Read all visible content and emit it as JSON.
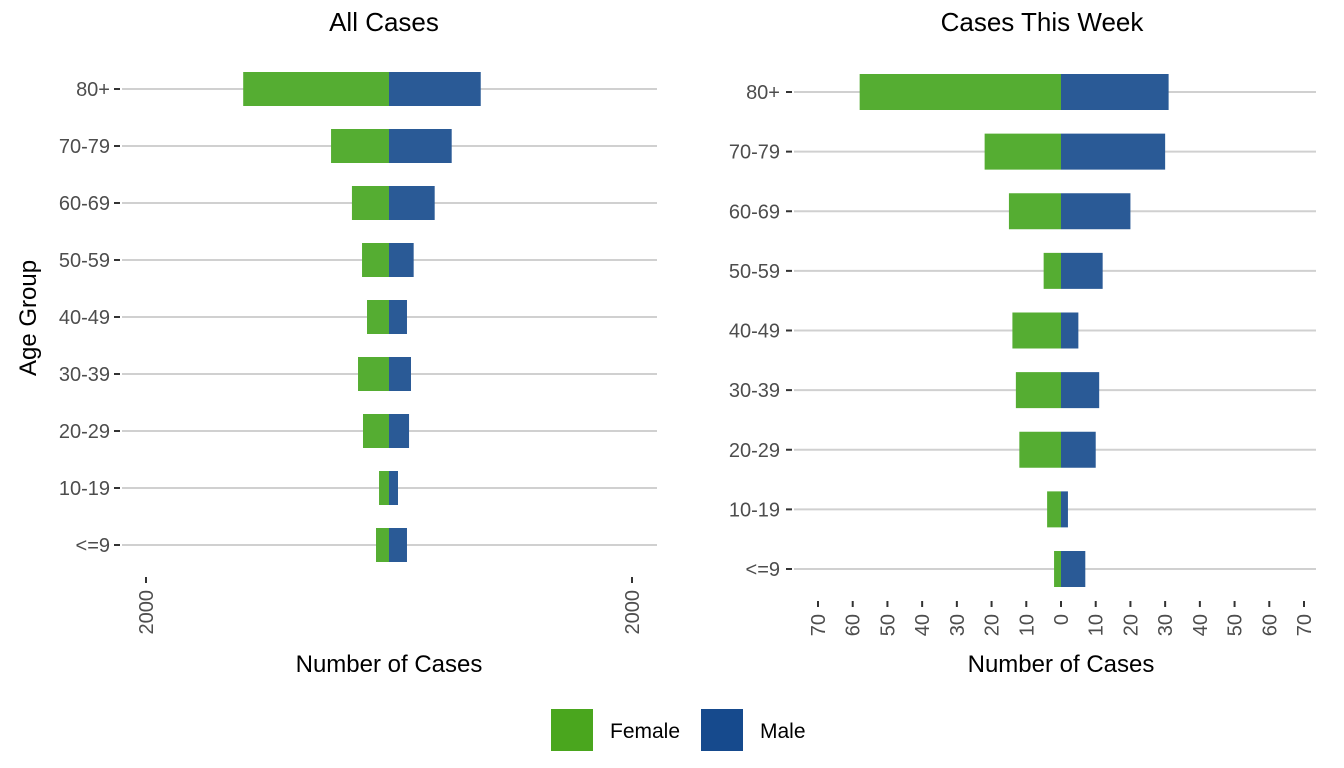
{
  "chart_data": [
    {
      "type": "bar",
      "orientation": "horizontal",
      "stacked": "diverging",
      "title": "All Cases",
      "xlabel": "Number of Cases",
      "ylabel": "Age Group",
      "categories": [
        "<=9",
        "10-19",
        "20-29",
        "30-39",
        "40-49",
        "50-59",
        "60-69",
        "70-79",
        "80+"
      ],
      "series": [
        {
          "name": "Female",
          "direction": "left",
          "values": [
            107,
            82,
            214,
            255,
            181,
            222,
            305,
            477,
            1200
          ]
        },
        {
          "name": "Male",
          "direction": "right",
          "values": [
            148,
            74,
            165,
            181,
            148,
            203,
            376,
            516,
            755
          ]
        }
      ],
      "xlim": [
        -2100,
        2200
      ],
      "xticks": [
        -2000,
        2000
      ],
      "xtick_labels": [
        "2000",
        "2000"
      ],
      "grid": "horizontal major"
    },
    {
      "type": "bar",
      "orientation": "horizontal",
      "stacked": "diverging",
      "title": "Cases This Week",
      "xlabel": "Number of Cases",
      "ylabel": "",
      "categories": [
        "<=9",
        "10-19",
        "20-29",
        "30-39",
        "40-49",
        "50-59",
        "60-69",
        "70-79",
        "80+"
      ],
      "series": [
        {
          "name": "Female",
          "direction": "left",
          "values": [
            2,
            4,
            12,
            13,
            14,
            5,
            15,
            22,
            58
          ]
        },
        {
          "name": "Male",
          "direction": "right",
          "values": [
            7,
            2,
            10,
            11,
            5,
            12,
            20,
            30,
            31
          ]
        }
      ],
      "xlim": [
        -77,
        74
      ],
      "xticks": [
        -70,
        -60,
        -50,
        -40,
        -30,
        -20,
        -10,
        0,
        10,
        20,
        30,
        40,
        50,
        60,
        70
      ],
      "xtick_labels": [
        "70",
        "60",
        "50",
        "40",
        "30",
        "20",
        "10",
        "0",
        "10",
        "20",
        "30",
        "40",
        "50",
        "60",
        "70"
      ],
      "grid": "horizontal major"
    }
  ],
  "legend": {
    "position": "bottom",
    "items": [
      {
        "label": "Female",
        "color": "#4aa61e"
      },
      {
        "label": "Male",
        "color": "#164a8d"
      }
    ]
  },
  "colors": {
    "female_bar": "#55ad32",
    "male_bar": "#2a5a96"
  }
}
